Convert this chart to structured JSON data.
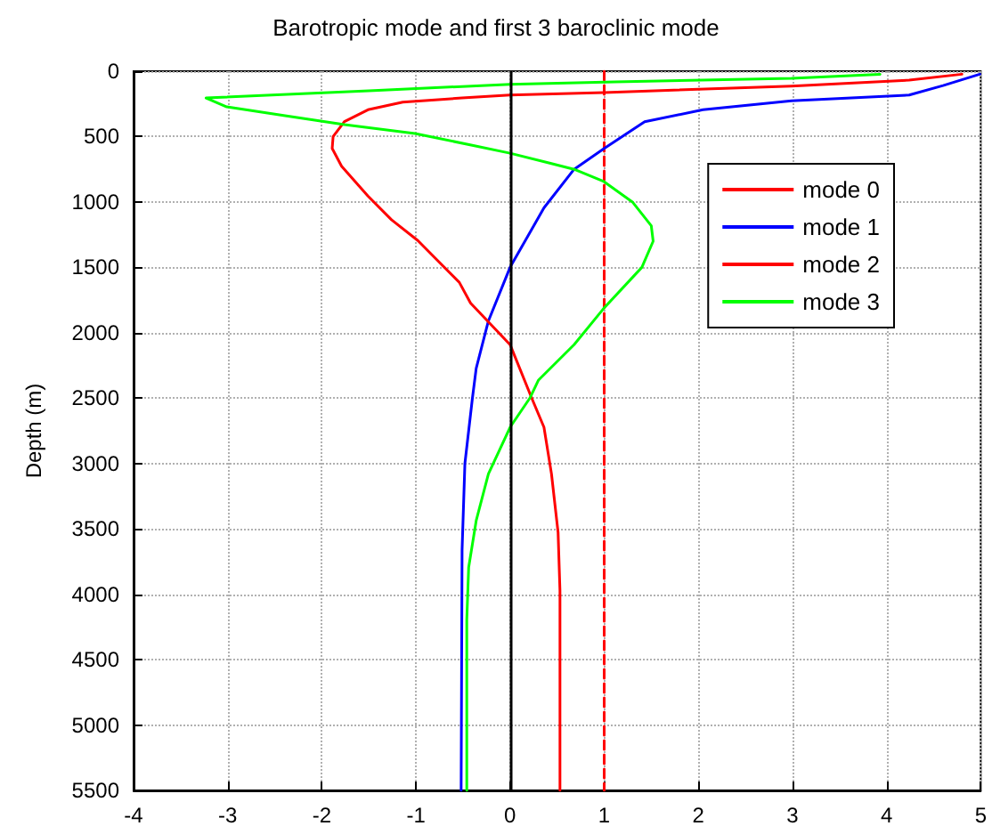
{
  "chart_data": {
    "type": "line",
    "title": "Barotropic mode and first 3 baroclinic mode",
    "ylabel": "Depth (m)",
    "xlim": [
      -4,
      5
    ],
    "xticks": [
      -4,
      -3,
      -2,
      -1,
      0,
      1,
      2,
      3,
      4,
      5
    ],
    "ylim": [
      5500,
      0
    ],
    "yticks": [
      0,
      500,
      1000,
      1500,
      2000,
      2500,
      3000,
      3500,
      4000,
      4500,
      5000,
      5500
    ],
    "grid": true,
    "legend": "top right",
    "marker": "none",
    "ref_lines": [
      {
        "axis": "x",
        "value": 0,
        "color": "#000000"
      }
    ],
    "series": [
      {
        "name": "mode 0",
        "color": "#ff0000",
        "line_style": "dashed",
        "x": [
          1,
          1
        ],
        "values": [
          0,
          5500
        ]
      },
      {
        "name": "mode 1",
        "color": "#0000ff",
        "line_style": "solid",
        "x": [
          4.99,
          4.6,
          4.24,
          2.99,
          2.05,
          1.43,
          1.0,
          0.68,
          0.36,
          0,
          -0.23,
          -0.36,
          -0.4,
          -0.48,
          -0.51,
          -0.52
        ],
        "values": [
          23,
          110,
          182,
          227,
          295,
          386,
          591,
          750,
          1045,
          1500,
          1909,
          2273,
          2500,
          3000,
          3661,
          5500
        ]
      },
      {
        "name": "mode 2",
        "color": "#ff0000",
        "line_style": "solid",
        "x": [
          4.8,
          4.24,
          2.99,
          1.74,
          1.0,
          0,
          -0.51,
          -1.14,
          -1.51,
          -1.76,
          -1.88,
          -1.89,
          -1.79,
          -1.51,
          -1.26,
          -0.98,
          -0.76,
          -0.54,
          -0.42,
          0,
          0.23,
          0.36,
          0.44,
          0.51,
          0.53,
          0.53
        ],
        "values": [
          23,
          68,
          114,
          145,
          164,
          182,
          205,
          236,
          295,
          386,
          500,
          591,
          727,
          955,
          1136,
          1295,
          1455,
          1614,
          1773,
          2091,
          2500,
          2723,
          3080,
          3527,
          3973,
          5500
        ]
      },
      {
        "name": "mode 3",
        "color": "#00ff00",
        "line_style": "solid",
        "x": [
          3.93,
          2.99,
          1.11,
          0,
          -1.5,
          -3.23,
          -3.01,
          -2.39,
          -1.76,
          -1.01,
          -0.39,
          0,
          0.43,
          0.68,
          0.99,
          1.3,
          1.5,
          1.52,
          1.4,
          0.99,
          0.68,
          0.3,
          0.21,
          0,
          -0.23,
          -0.36,
          -0.44,
          -0.46,
          -0.46
        ],
        "values": [
          23,
          55,
          82,
          100,
          150,
          205,
          273,
          341,
          409,
          477,
          568,
          627,
          705,
          750,
          841,
          1000,
          1182,
          1300,
          1500,
          1818,
          2091,
          2364,
          2500,
          2723,
          3080,
          3437,
          3795,
          4196,
          5500
        ]
      }
    ]
  }
}
